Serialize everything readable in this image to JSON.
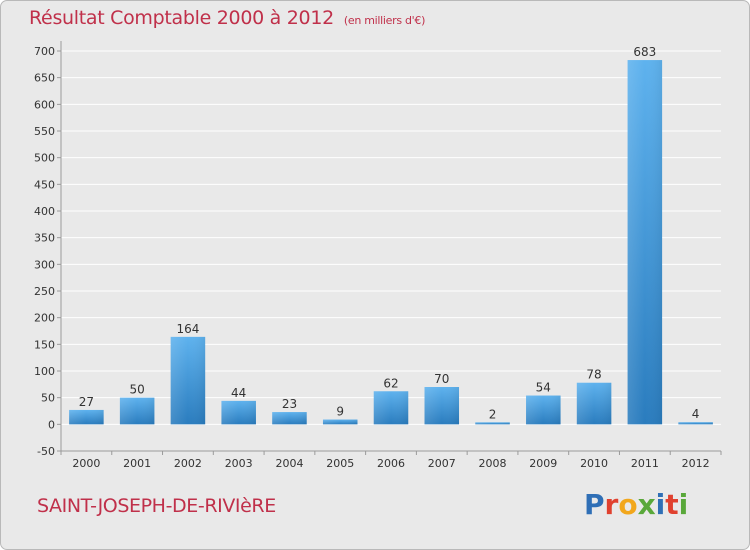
{
  "title": "Résultat Comptable 2000 à 2012",
  "subtitle": "(en milliers d'€)",
  "place_name": "SAINT-JOSEPH-DE-RIVIèRE",
  "logo_text": "Proxiti",
  "colors": {
    "title": "#c0304a",
    "bar_light": "#5aaeea",
    "bar_dark": "#2a7fc1",
    "background": "#e9e9e9"
  },
  "chart_data": {
    "type": "bar",
    "categories": [
      "2000",
      "2001",
      "2002",
      "2003",
      "2004",
      "2005",
      "2006",
      "2007",
      "2008",
      "2009",
      "2010",
      "2011",
      "2012"
    ],
    "values": [
      27,
      50,
      164,
      44,
      23,
      9,
      62,
      70,
      2,
      54,
      78,
      683,
      4
    ],
    "ylim": [
      -50,
      700
    ],
    "yticks": [
      -50,
      0,
      50,
      100,
      150,
      200,
      250,
      300,
      350,
      400,
      450,
      500,
      550,
      600,
      650,
      700
    ],
    "grid": true,
    "legend": "none"
  }
}
